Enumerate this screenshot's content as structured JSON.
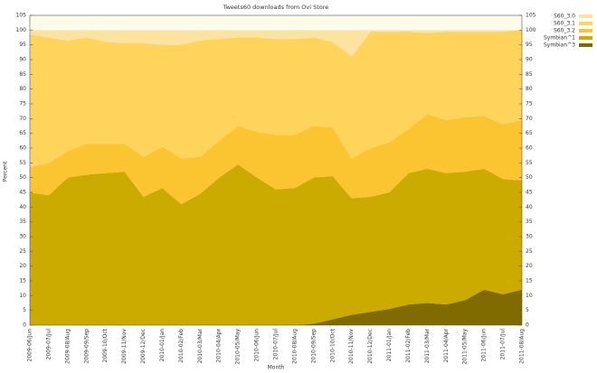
{
  "chart_data": {
    "type": "stacked_area",
    "title": "Tweets60 downloads from Ovi Store",
    "x_label": "Month",
    "y_label": "Percent",
    "categories": [
      "2009-06/Jun",
      "2009-07/Jul",
      "2009-08/Aug",
      "2009-09/Sep",
      "2009-10/Oct",
      "2009-11/Nov",
      "2009-12/Dec",
      "2010-01/Jan",
      "2010-02/Feb",
      "2010-03/Mar",
      "2010-04/Apr",
      "2010-05/May",
      "2010-06/Jun",
      "2010-07/Jul",
      "2010-08/Aug",
      "2010-09/Sep",
      "2010-10/Oct",
      "2010-11/Nov",
      "2010-12/Dec",
      "2011-01/Jan",
      "2011-02/Feb",
      "2011-03/Mar",
      "2011-04/Apr",
      "2011-05/May",
      "2011-06/Jun",
      "2011-07/Jul",
      "2011-08/Aug"
    ],
    "series": [
      {
        "name": "S60_3.0",
        "color": "#fde3a0",
        "values": [
          1.5,
          2.5,
          3.5,
          2.5,
          4,
          4.5,
          4.5,
          5,
          5,
          3.5,
          3,
          2.5,
          2.5,
          3,
          3,
          2.5,
          4,
          9,
          0.5,
          0.5,
          0.5,
          1,
          0.5,
          0.5,
          0.5,
          0.5,
          0
        ]
      },
      {
        "name": "S60_3.1",
        "color": "#fed45a",
        "values": [
          45,
          42.5,
          37.5,
          36,
          34.5,
          34,
          38.5,
          34.5,
          38.5,
          39.5,
          34.5,
          30,
          32,
          32.5,
          32.5,
          30,
          29,
          34.5,
          39.5,
          37.5,
          33,
          27.5,
          30,
          29,
          28.5,
          31.5,
          30.5
        ]
      },
      {
        "name": "S60_3.2",
        "color": "#fbc531",
        "values": [
          8.5,
          11,
          9,
          10.5,
          10,
          9.5,
          13.5,
          14,
          15.5,
          12.5,
          12.5,
          13,
          15.5,
          18.5,
          18,
          17.5,
          16.5,
          13.5,
          16.5,
          17,
          15,
          18.5,
          18,
          18.5,
          18,
          18.5,
          20.5
        ]
      },
      {
        "name": "Symbian^1",
        "color": "#ccab00",
        "values": [
          45,
          44,
          50,
          51,
          51.5,
          52,
          43.5,
          46.5,
          41,
          44.5,
          50,
          54.5,
          50,
          46,
          46.5,
          49.5,
          48.5,
          39.5,
          39,
          39.5,
          44.5,
          45.5,
          44.5,
          43.5,
          41,
          39,
          37
        ]
      },
      {
        "name": "Symbian^3",
        "color": "#7f6b00",
        "values": [
          0,
          0,
          0,
          0,
          0,
          0,
          0,
          0,
          0,
          0,
          0,
          0,
          0,
          0,
          0,
          0.5,
          2,
          3.5,
          4.5,
          5.5,
          7,
          7.5,
          7,
          8.5,
          12,
          10.5,
          12
        ]
      }
    ],
    "ylim": [
      0,
      105
    ],
    "yticks": [
      0,
      5,
      10,
      15,
      20,
      25,
      30,
      35,
      40,
      45,
      50,
      55,
      60,
      65,
      70,
      75,
      80,
      85,
      90,
      95,
      100,
      105
    ],
    "y2lim": [
      0,
      105
    ],
    "y2ticks": [
      0,
      5,
      10,
      15,
      20,
      25,
      30,
      35,
      40,
      45,
      50,
      55,
      60,
      65,
      70,
      75,
      80,
      85,
      90,
      95,
      100,
      105
    ]
  }
}
